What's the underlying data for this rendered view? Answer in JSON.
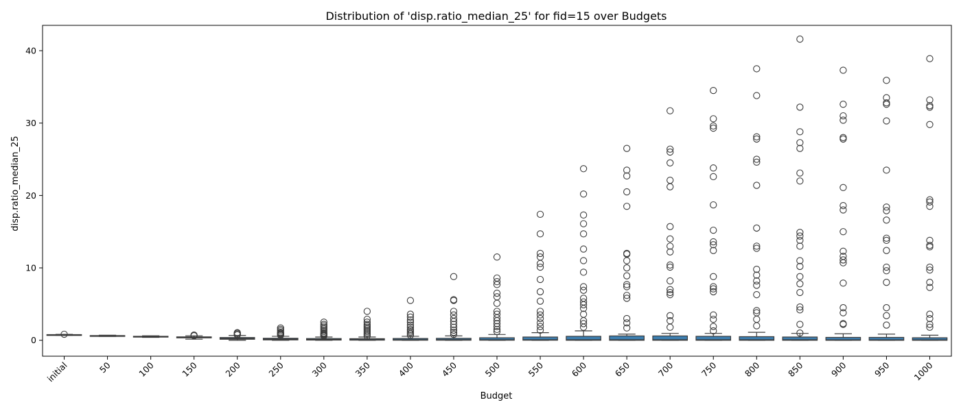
{
  "chart_data": {
    "type": "box",
    "title": "Distribution of 'disp.ratio_median_25' for fid=15 over Budgets",
    "xlabel": "Budget",
    "ylabel": "disp.ratio_median_25",
    "ylim": [
      -2.2,
      43.5
    ],
    "yticks": [
      0,
      10,
      20,
      30,
      40
    ],
    "grid": false,
    "box_color": "#3d7fb0",
    "line_color": "#3b3b3b",
    "categories": [
      "initial",
      "50",
      "100",
      "150",
      "200",
      "250",
      "300",
      "350",
      "400",
      "450",
      "500",
      "550",
      "600",
      "650",
      "700",
      "750",
      "800",
      "850",
      "900",
      "950",
      "1000"
    ],
    "boxes": [
      {
        "q1": 0.72,
        "median": 0.75,
        "q3": 0.78,
        "whislo": 0.68,
        "whishi": 0.82,
        "fliers": [
          0.83
        ]
      },
      {
        "q1": 0.57,
        "median": 0.6,
        "q3": 0.65,
        "whislo": 0.53,
        "whishi": 0.7,
        "fliers": []
      },
      {
        "q1": 0.45,
        "median": 0.5,
        "q3": 0.55,
        "whislo": 0.4,
        "whishi": 0.62,
        "fliers": []
      },
      {
        "q1": 0.33,
        "median": 0.4,
        "q3": 0.47,
        "whislo": 0.15,
        "whishi": 0.62,
        "fliers": [
          0.68,
          0.72,
          0.62
        ]
      },
      {
        "q1": 0.14,
        "median": 0.24,
        "q3": 0.38,
        "whislo": 0.0,
        "whishi": 0.66,
        "fliers": [
          0.8,
          0.95,
          1.05,
          0.75
        ]
      },
      {
        "q1": 0.05,
        "median": 0.14,
        "q3": 0.28,
        "whislo": 0.0,
        "whishi": 0.55,
        "fliers": [
          0.7,
          0.9,
          1.1,
          1.3,
          1.5,
          1.7,
          0.8,
          1.0
        ]
      },
      {
        "q1": 0.03,
        "median": 0.1,
        "q3": 0.24,
        "whislo": 0.0,
        "whishi": 0.45,
        "fliers": [
          0.6,
          0.8,
          1.0,
          1.2,
          1.4,
          1.6,
          1.8,
          2.0,
          2.2,
          2.5,
          0.7,
          0.9
        ]
      },
      {
        "q1": 0.02,
        "median": 0.08,
        "q3": 0.22,
        "whislo": 0.0,
        "whishi": 0.45,
        "fliers": [
          0.6,
          0.8,
          1.0,
          1.2,
          1.4,
          1.6,
          1.8,
          2.0,
          2.2,
          2.5,
          2.9,
          4.0
        ]
      },
      {
        "q1": 0.01,
        "median": 0.07,
        "q3": 0.25,
        "whislo": 0.0,
        "whishi": 0.55,
        "fliers": [
          0.7,
          0.9,
          1.1,
          1.3,
          1.5,
          1.8,
          2.1,
          2.5,
          2.8,
          3.2,
          3.6,
          5.5
        ]
      },
      {
        "q1": 0.01,
        "median": 0.07,
        "q3": 0.27,
        "whislo": 0.0,
        "whishi": 0.6,
        "fliers": [
          0.8,
          1.1,
          1.4,
          1.8,
          2.2,
          2.6,
          3.0,
          3.5,
          4.0,
          5.5,
          5.6,
          8.8
        ]
      },
      {
        "q1": 0.01,
        "median": 0.06,
        "q3": 0.35,
        "whislo": 0.0,
        "whishi": 0.8,
        "fliers": [
          1.2,
          1.5,
          1.9,
          2.3,
          2.7,
          3.1,
          3.6,
          4.0,
          5.1,
          6.0,
          6.5,
          7.7,
          8.1,
          8.6,
          11.5
        ]
      },
      {
        "q1": 0.01,
        "median": 0.06,
        "q3": 0.45,
        "whislo": 0.0,
        "whishi": 1.05,
        "fliers": [
          1.4,
          1.9,
          2.4,
          3.0,
          3.5,
          4.0,
          5.4,
          6.7,
          8.4,
          10.1,
          10.6,
          11.5,
          12.0,
          14.7,
          17.4
        ]
      },
      {
        "q1": 0.0,
        "median": 0.05,
        "q3": 0.55,
        "whislo": 0.0,
        "whishi": 1.3,
        "fliers": [
          1.8,
          2.3,
          2.7,
          3.6,
          4.4,
          4.9,
          5.3,
          5.8,
          6.9,
          7.4,
          9.4,
          11.0,
          12.6,
          14.7,
          16.1,
          17.3,
          20.2,
          23.7
        ]
      },
      {
        "q1": 0.0,
        "median": 0.05,
        "q3": 0.6,
        "whislo": 0.0,
        "whishi": 0.85,
        "fliers": [
          1.7,
          2.4,
          3.0,
          5.8,
          6.2,
          7.4,
          7.7,
          8.9,
          10.0,
          11.0,
          11.9,
          12.0,
          18.5,
          20.5,
          22.7,
          23.5,
          26.5
        ]
      },
      {
        "q1": 0.0,
        "median": 0.05,
        "q3": 0.6,
        "whislo": 0.0,
        "whishi": 0.95,
        "fliers": [
          1.8,
          2.7,
          3.4,
          6.3,
          6.6,
          7.0,
          8.2,
          10.1,
          10.4,
          12.2,
          13.0,
          14.0,
          15.7,
          21.2,
          22.1,
          24.5,
          26.0,
          26.4,
          31.7
        ]
      },
      {
        "q1": 0.0,
        "median": 0.05,
        "q3": 0.55,
        "whislo": 0.0,
        "whishi": 0.95,
        "fliers": [
          1.3,
          1.9,
          2.9,
          3.5,
          6.7,
          7.1,
          7.4,
          8.8,
          12.4,
          13.2,
          13.6,
          15.2,
          18.7,
          22.6,
          23.8,
          29.3,
          29.6,
          30.6,
          34.5
        ]
      },
      {
        "q1": 0.0,
        "median": 0.05,
        "q3": 0.5,
        "whislo": 0.0,
        "whishi": 1.1,
        "fliers": [
          2.0,
          2.9,
          3.8,
          4.1,
          6.3,
          7.6,
          8.2,
          9.0,
          9.8,
          12.7,
          13.0,
          15.5,
          21.4,
          24.6,
          25.0,
          27.8,
          28.1,
          33.8,
          37.5
        ]
      },
      {
        "q1": 0.0,
        "median": 0.05,
        "q3": 0.45,
        "whislo": 0.0,
        "whishi": 0.95,
        "fliers": [
          1.0,
          2.2,
          4.2,
          4.6,
          6.6,
          7.8,
          8.8,
          10.2,
          11.0,
          13.0,
          13.8,
          14.4,
          14.9,
          22.0,
          23.1,
          26.5,
          27.3,
          28.8,
          32.2,
          41.6
        ]
      },
      {
        "q1": 0.0,
        "median": 0.04,
        "q3": 0.4,
        "whislo": 0.0,
        "whishi": 0.9,
        "fliers": [
          2.2,
          2.3,
          3.8,
          4.5,
          7.9,
          10.7,
          11.1,
          11.6,
          12.3,
          15.0,
          18.0,
          18.6,
          21.1,
          27.8,
          28.0,
          30.4,
          31.0,
          32.6,
          37.3
        ]
      },
      {
        "q1": 0.0,
        "median": 0.04,
        "q3": 0.4,
        "whislo": 0.0,
        "whishi": 0.85,
        "fliers": [
          2.1,
          3.4,
          4.5,
          8.0,
          9.6,
          10.1,
          12.4,
          13.8,
          14.1,
          16.6,
          17.9,
          18.4,
          23.5,
          30.3,
          32.6,
          32.8,
          33.5,
          35.9
        ]
      },
      {
        "q1": 0.0,
        "median": 0.04,
        "q3": 0.35,
        "whislo": 0.0,
        "whishi": 0.7,
        "fliers": [
          1.8,
          2.2,
          3.0,
          3.6,
          7.3,
          8.0,
          9.7,
          10.1,
          12.9,
          13.1,
          13.8,
          18.5,
          19.1,
          19.4,
          29.8,
          32.2,
          32.4,
          33.2,
          38.9
        ]
      }
    ]
  }
}
